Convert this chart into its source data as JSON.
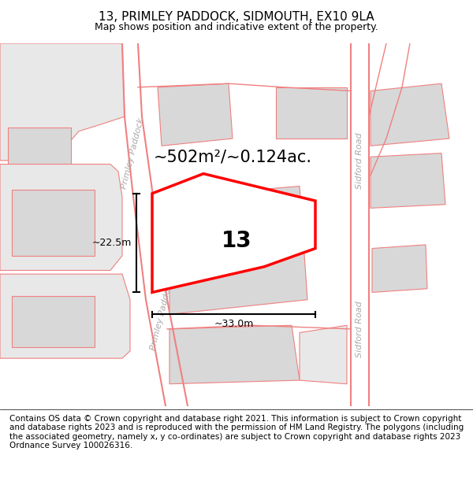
{
  "title": "13, PRIMLEY PADDOCK, SIDMOUTH, EX10 9LA",
  "subtitle": "Map shows position and indicative extent of the property.",
  "footer": "Contains OS data © Crown copyright and database right 2021. This information is subject to Crown copyright and database rights 2023 and is reproduced with the permission of HM Land Registry. The polygons (including the associated geometry, namely x, y co-ordinates) are subject to Crown copyright and database rights 2023 Ordnance Survey 100026316.",
  "background_color": "#ffffff",
  "map_bg_color": "#f5f5f5",
  "plot_edge_color": "#ff0000",
  "road_color": "#f08080",
  "parcel_fill": "#e8e8e8",
  "parcel_edge": "#f08080",
  "area_text": "~502m²/~0.124ac.",
  "plot_label": "13",
  "dim_h": "~22.5m",
  "dim_w": "~33.0m",
  "road_label_1": "Primley Paddock",
  "road_label_2": "Sidford Road",
  "title_fontsize": 11,
  "subtitle_fontsize": 9,
  "footer_fontsize": 7.5,
  "label_fontsize": 20,
  "area_fontsize": 15,
  "dim_fontsize": 9,
  "road_label_fontsize": 8
}
